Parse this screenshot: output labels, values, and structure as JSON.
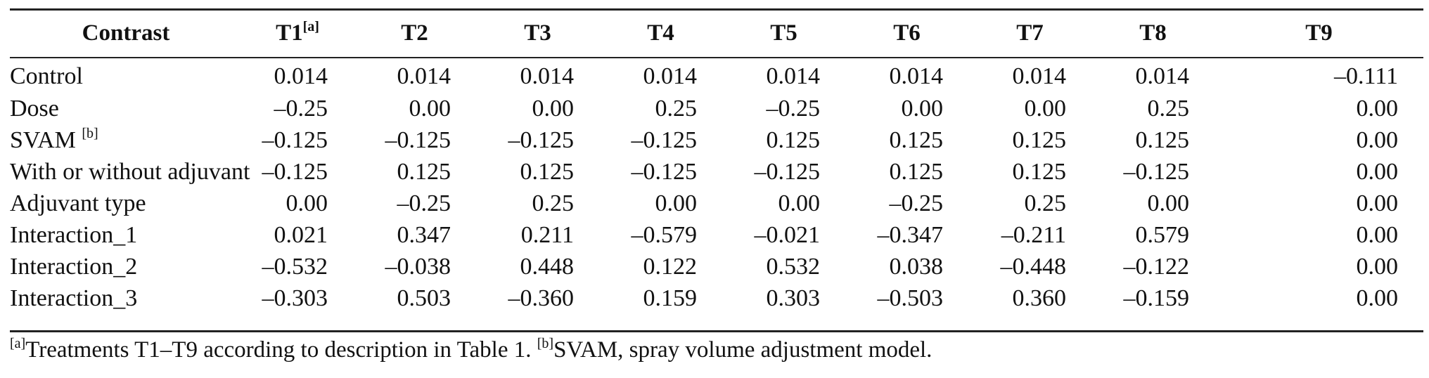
{
  "table": {
    "header_first": "Contrast",
    "columns": [
      {
        "label": "T1",
        "sup": "[a]"
      },
      {
        "label": "T2",
        "sup": ""
      },
      {
        "label": "T3",
        "sup": ""
      },
      {
        "label": "T4",
        "sup": ""
      },
      {
        "label": "T5",
        "sup": ""
      },
      {
        "label": "T6",
        "sup": ""
      },
      {
        "label": "T7",
        "sup": ""
      },
      {
        "label": "T8",
        "sup": ""
      },
      {
        "label": "T9",
        "sup": ""
      }
    ],
    "rows": [
      {
        "label": "Control",
        "sup": "",
        "values": [
          "0.014",
          "0.014",
          "0.014",
          "0.014",
          "0.014",
          "0.014",
          "0.014",
          "0.014",
          "–0.111"
        ]
      },
      {
        "label": "Dose",
        "sup": "",
        "values": [
          "–0.25",
          "0.00",
          "0.00",
          "0.25",
          "–0.25",
          "0.00",
          "0.00",
          "0.25",
          "0.00"
        ]
      },
      {
        "label": "SVAM ",
        "sup": "[b]",
        "values": [
          "–0.125",
          "–0.125",
          "–0.125",
          "–0.125",
          "0.125",
          "0.125",
          "0.125",
          "0.125",
          "0.00"
        ]
      },
      {
        "label": "With or without adjuvant",
        "sup": "",
        "values": [
          "–0.125",
          "0.125",
          "0.125",
          "–0.125",
          "–0.125",
          "0.125",
          "0.125",
          "–0.125",
          "0.00"
        ]
      },
      {
        "label": "Adjuvant type",
        "sup": "",
        "values": [
          "0.00",
          "–0.25",
          "0.25",
          "0.00",
          "0.00",
          "–0.25",
          "0.25",
          "0.00",
          "0.00"
        ]
      },
      {
        "label": "Interaction_1",
        "sup": "",
        "values": [
          "0.021",
          "0.347",
          "0.211",
          "–0.579",
          "–0.021",
          "–0.347",
          "–0.211",
          "0.579",
          "0.00"
        ]
      },
      {
        "label": "Interaction_2",
        "sup": "",
        "values": [
          "–0.532",
          "–0.038",
          "0.448",
          "0.122",
          "0.532",
          "0.038",
          "–0.448",
          "–0.122",
          "0.00"
        ]
      },
      {
        "label": "Interaction_3",
        "sup": "",
        "values": [
          "–0.303",
          "0.503",
          "–0.360",
          "0.159",
          "0.303",
          "–0.503",
          "0.360",
          "–0.159",
          "0.00"
        ]
      }
    ]
  },
  "footnote": {
    "a_mark": "[a]",
    "a_text": "Treatments T1–T9 according to description in Table 1. ",
    "b_mark": "[b]",
    "b_text": "SVAM, spray volume adjustment model."
  }
}
